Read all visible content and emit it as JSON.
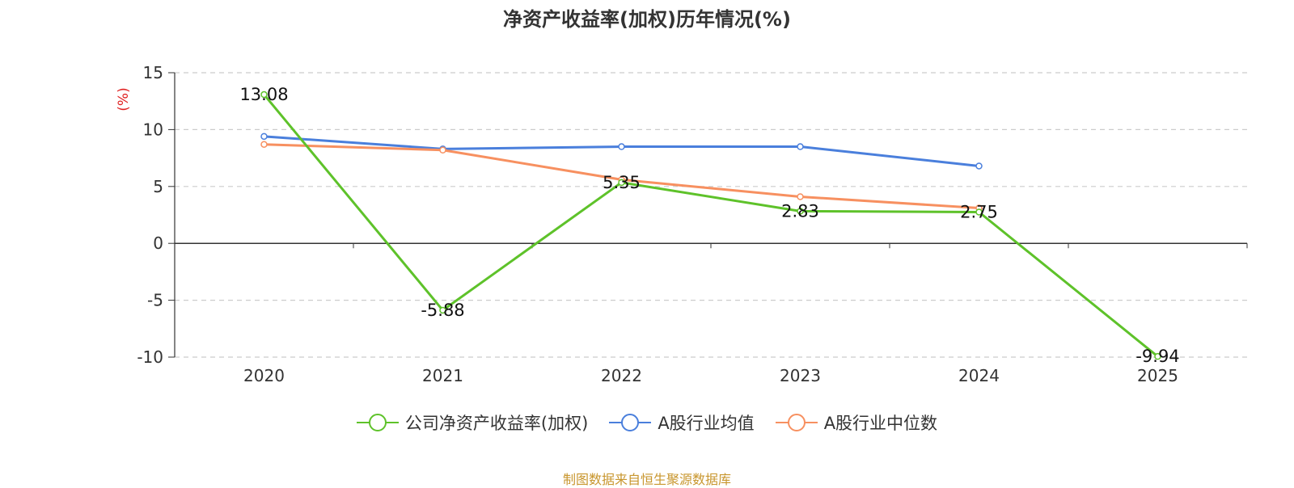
{
  "title": "净资产收益率(加权)历年情况(%)",
  "y_unit_label": "(%)",
  "source_note": "制图数据来自恒生聚源数据库",
  "colors": {
    "company": "#5ec22a",
    "industry_avg": "#4a7fdc",
    "industry_median": "#f79060",
    "unit_label": "#e02020",
    "axis": "#333333",
    "grid": "#cccccc"
  },
  "chart_data": {
    "type": "line",
    "title": "净资产收益率(加权)历年情况(%)",
    "xlabel": "",
    "ylabel": "(%)",
    "categories": [
      "2020",
      "2021",
      "2022",
      "2023",
      "2024",
      "2025"
    ],
    "ylim": [
      -10,
      15
    ],
    "yticks": [
      15,
      10,
      5,
      0,
      -5,
      -10
    ],
    "grid": true,
    "legend_position": "bottom",
    "series": [
      {
        "name": "公司净资产收益率(加权)",
        "values": [
          13.08,
          -5.88,
          5.35,
          2.83,
          2.75,
          -9.94
        ],
        "labels": [
          "13.08",
          "-5.88",
          "5.35",
          "2.83",
          "2.75",
          "-9.94"
        ]
      },
      {
        "name": "A股行业均值",
        "values": [
          9.4,
          8.3,
          8.5,
          8.5,
          6.8,
          null
        ]
      },
      {
        "name": "A股行业中位数",
        "values": [
          8.7,
          8.2,
          5.6,
          4.1,
          3.1,
          null
        ]
      }
    ]
  }
}
